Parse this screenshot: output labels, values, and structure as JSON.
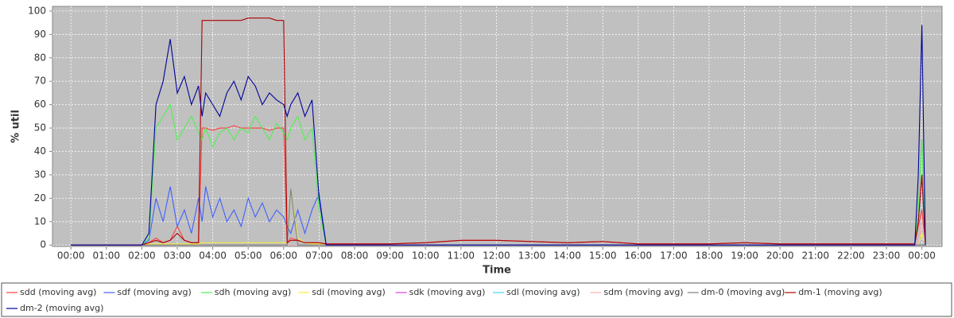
{
  "chart_data": {
    "type": "line",
    "x_label": "Time",
    "y_label": "% util",
    "xlim": [
      -0.52,
      24.57
    ],
    "ylim": [
      -0.6,
      102
    ],
    "xticks": [
      {
        "value": 0,
        "label": "00:00"
      },
      {
        "value": 1,
        "label": "01:00"
      },
      {
        "value": 2,
        "label": "02:00"
      },
      {
        "value": 3,
        "label": "03:00"
      },
      {
        "value": 4,
        "label": "04:00"
      },
      {
        "value": 5,
        "label": "05:00"
      },
      {
        "value": 6,
        "label": "06:00"
      },
      {
        "value": 7,
        "label": "07:00"
      },
      {
        "value": 8,
        "label": "08:00"
      },
      {
        "value": 9,
        "label": "09:00"
      },
      {
        "value": 10,
        "label": "10:00"
      },
      {
        "value": 11,
        "label": "11:00"
      },
      {
        "value": 12,
        "label": "12:00"
      },
      {
        "value": 13,
        "label": "13:00"
      },
      {
        "value": 14,
        "label": "14:00"
      },
      {
        "value": 15,
        "label": "15:00"
      },
      {
        "value": 16,
        "label": "16:00"
      },
      {
        "value": 17,
        "label": "17:00"
      },
      {
        "value": 18,
        "label": "18:00"
      },
      {
        "value": 19,
        "label": "19:00"
      },
      {
        "value": 20,
        "label": "20:00"
      },
      {
        "value": 21,
        "label": "21:00"
      },
      {
        "value": 22,
        "label": "22:00"
      },
      {
        "value": 23,
        "label": "23:00"
      },
      {
        "value": 24,
        "label": "00:00"
      }
    ],
    "yticks": [
      0,
      10,
      20,
      30,
      40,
      50,
      60,
      70,
      80,
      90,
      100
    ],
    "grid": true,
    "x": [
      0,
      1,
      2,
      2.2,
      2.4,
      2.6,
      2.8,
      3,
      3.2,
      3.4,
      3.6,
      3.7,
      3.8,
      4,
      4.2,
      4.4,
      4.6,
      4.8,
      5,
      5.2,
      5.4,
      5.6,
      5.8,
      6,
      6.1,
      6.2,
      6.4,
      6.6,
      6.8,
      7,
      7.2,
      8,
      9,
      10,
      11,
      12,
      13,
      14,
      15,
      16,
      17,
      18,
      19,
      20,
      21,
      22,
      23,
      23.6,
      23.8,
      23.9,
      24,
      24.1
    ],
    "series": [
      {
        "name": "sdd (moving avg)",
        "color": "#ff4040",
        "values": [
          0,
          0,
          0,
          1,
          3,
          1,
          2,
          8,
          2,
          1,
          1,
          50,
          50,
          49,
          50,
          50,
          51,
          50,
          50,
          50,
          50,
          49,
          50,
          50,
          1,
          3,
          2,
          1,
          1,
          1,
          0.5,
          0.5,
          0.5,
          1,
          2,
          2,
          1.5,
          1,
          1.5,
          0.5,
          0.5,
          0.5,
          1,
          0.5,
          0.5,
          0.5,
          0.5,
          0.5,
          0.5,
          8,
          15,
          0
        ]
      },
      {
        "name": "sdf (moving avg)",
        "color": "#4060ff",
        "values": [
          0,
          0,
          0,
          2,
          20,
          10,
          25,
          8,
          15,
          5,
          20,
          10,
          25,
          12,
          20,
          10,
          15,
          8,
          20,
          12,
          18,
          10,
          15,
          12,
          8,
          5,
          15,
          5,
          15,
          22,
          0,
          0,
          0,
          0,
          0,
          0,
          0,
          0,
          0,
          0,
          0,
          0,
          0,
          0,
          0,
          0,
          0,
          0,
          0,
          10,
          30,
          0
        ]
      },
      {
        "name": "sdh (moving avg)",
        "color": "#50f050",
        "values": [
          0,
          0,
          0,
          3,
          50,
          55,
          60,
          45,
          50,
          55,
          48,
          45,
          50,
          42,
          48,
          50,
          45,
          50,
          48,
          55,
          50,
          45,
          52,
          48,
          45,
          50,
          55,
          45,
          50,
          15,
          0,
          0,
          0,
          0,
          0,
          0,
          0,
          0,
          0,
          0,
          0,
          0,
          0,
          0,
          0,
          0,
          0,
          0,
          0,
          15,
          45,
          0
        ]
      },
      {
        "name": "sdi (moving avg)",
        "color": "#f0f040",
        "values": [
          0,
          0,
          0,
          0.5,
          0.5,
          0.5,
          0.5,
          0.5,
          0.5,
          0.5,
          0.5,
          1,
          1,
          1,
          1,
          1,
          1,
          1,
          1,
          1,
          1,
          1,
          1,
          1,
          1,
          24,
          3,
          1,
          0.5,
          0.5,
          0,
          0,
          0,
          0,
          0,
          0,
          0,
          0,
          0,
          0,
          0,
          0,
          0,
          0,
          0,
          0,
          0,
          0,
          0,
          0,
          5,
          0
        ]
      },
      {
        "name": "sdk (moving avg)",
        "color": "#e040e0",
        "values": [
          0,
          0,
          0,
          0,
          0,
          0,
          0,
          0,
          0,
          0,
          0,
          0,
          0,
          0,
          0,
          0,
          0,
          0,
          0,
          0,
          0,
          0,
          0,
          0,
          0,
          0,
          0,
          0,
          0,
          0,
          0,
          0,
          0,
          0,
          0,
          0,
          0,
          0,
          0,
          0,
          0,
          0,
          0,
          0,
          0,
          0,
          0,
          0,
          0,
          0,
          0,
          0
        ]
      },
      {
        "name": "sdl (moving avg)",
        "color": "#40e0f0",
        "values": [
          0,
          0,
          0,
          0,
          0,
          0,
          0,
          0,
          0,
          0,
          0,
          0,
          0,
          0,
          0,
          0,
          0,
          0,
          0,
          0,
          0,
          0,
          0,
          0,
          0,
          0,
          0,
          0,
          0,
          0,
          0,
          0,
          0,
          0,
          0,
          0,
          0,
          0,
          0,
          0,
          0,
          0,
          0,
          0,
          0,
          0,
          0,
          0,
          0,
          0,
          0,
          0
        ]
      },
      {
        "name": "sdm (moving avg)",
        "color": "#ffb0b0",
        "values": [
          0,
          0,
          0,
          0,
          0,
          0,
          0,
          0,
          0,
          0,
          0,
          0,
          0,
          0,
          0,
          0,
          0,
          0,
          0,
          0,
          0,
          0,
          0,
          0,
          0,
          0,
          0,
          0,
          0,
          0,
          0,
          0,
          0,
          0,
          0,
          0,
          0,
          0,
          0,
          0,
          0,
          0,
          0,
          0,
          0,
          0,
          0,
          0,
          0,
          0,
          10,
          0
        ]
      },
      {
        "name": "dm-0 (moving avg)",
        "color": "#808080",
        "values": [
          0,
          0,
          0,
          0,
          0,
          0,
          0,
          0,
          0,
          0,
          0,
          0,
          0,
          0,
          0,
          0,
          0,
          0,
          0,
          0,
          0,
          0,
          0,
          0,
          0,
          24,
          0,
          0,
          0,
          0,
          0,
          0,
          0,
          0,
          0,
          0,
          0,
          0,
          0,
          0,
          0,
          0,
          0,
          0,
          0,
          0,
          0,
          0,
          0,
          0,
          0,
          0
        ]
      },
      {
        "name": "dm-1 (moving avg)",
        "color": "#b00000",
        "values": [
          0,
          0,
          0,
          1,
          2,
          1,
          2,
          5,
          2,
          1,
          1,
          96,
          96,
          96,
          96,
          96,
          96,
          96,
          97,
          97,
          97,
          97,
          96,
          96,
          1,
          2,
          2,
          1,
          1,
          1,
          0.5,
          0.5,
          0.5,
          1,
          2,
          2,
          1.5,
          1,
          1.5,
          0.5,
          0.5,
          0.5,
          1,
          0.5,
          0.5,
          0.5,
          0.5,
          0.5,
          0.5,
          10,
          30,
          0
        ]
      },
      {
        "name": "dm-2 (moving avg)",
        "color": "#000099",
        "values": [
          0,
          0,
          0,
          5,
          60,
          70,
          88,
          65,
          72,
          60,
          68,
          55,
          65,
          60,
          55,
          65,
          70,
          62,
          72,
          68,
          60,
          65,
          62,
          60,
          55,
          60,
          65,
          55,
          62,
          20,
          0,
          0,
          0,
          0,
          0,
          0,
          0,
          0,
          0,
          0,
          0,
          0,
          0,
          0,
          0,
          0,
          0,
          0,
          0,
          30,
          94,
          0
        ]
      }
    ]
  }
}
